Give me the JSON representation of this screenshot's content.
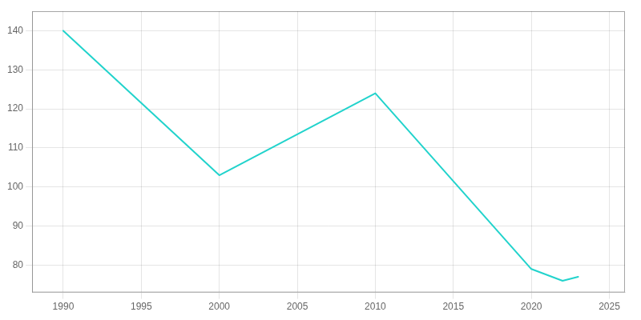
{
  "chart_data": {
    "type": "line",
    "x": [
      1990,
      2000,
      2010,
      2020,
      2022,
      2023
    ],
    "values": [
      140,
      103,
      124,
      79,
      76,
      77
    ],
    "color": "#22d3cc",
    "xlim": [
      1988,
      2026
    ],
    "ylim": [
      73,
      145
    ],
    "xticks": [
      1990,
      1995,
      2000,
      2005,
      2010,
      2015,
      2020,
      2025
    ],
    "yticks": [
      80,
      90,
      100,
      110,
      120,
      130,
      140
    ],
    "grid": true
  }
}
